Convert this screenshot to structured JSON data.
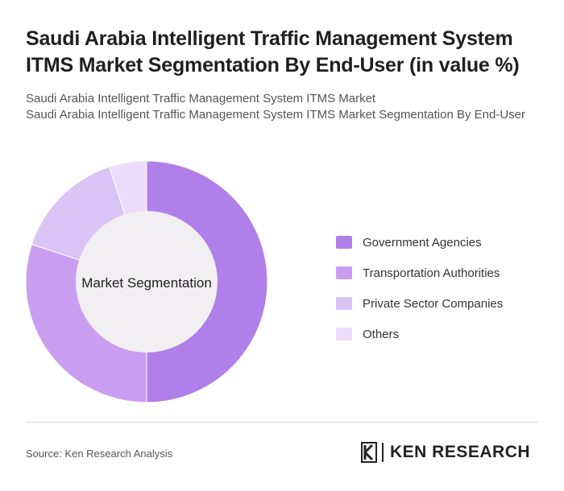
{
  "title": "Saudi Arabia Intelligent Traffic Management System ITMS Market Segmentation By End-User (in value %)",
  "subtitle_line1": "Saudi Arabia Intelligent Traffic Management System ITMS Market",
  "subtitle_line2": "Saudi Arabia Intelligent Traffic Management System ITMS Market Segmentation By End-User",
  "center_label": "Market Segmentation",
  "source": "Source: Ken Research Analysis",
  "brand": {
    "name": "KEN RESEARCH"
  },
  "chart_data": {
    "type": "pie",
    "donut": true,
    "categories": [
      "Government Agencies",
      "Transportation Authorities",
      "Private Sector Companies",
      "Others"
    ],
    "values": [
      50,
      30,
      15,
      5
    ],
    "colors": [
      "#b07fe9",
      "#c99ef0",
      "#dcc3f6",
      "#ecdcfa"
    ],
    "legend_position": "right"
  }
}
